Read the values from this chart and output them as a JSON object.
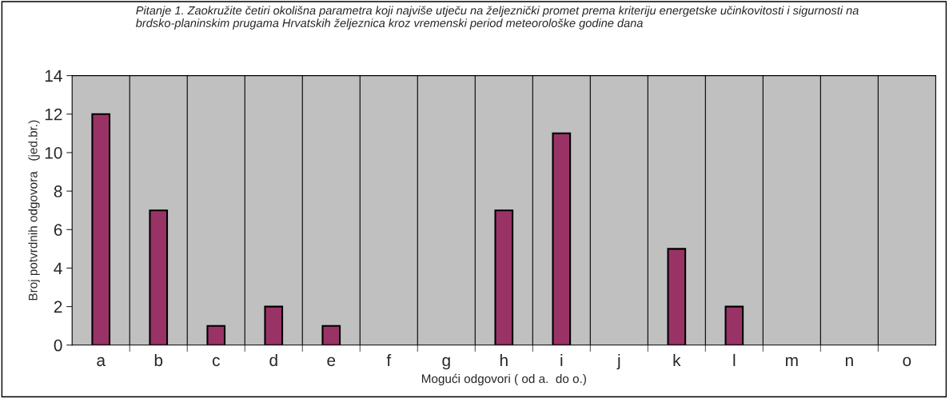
{
  "chart_data": {
    "type": "bar",
    "title": "Pitanje 1. Zaokružite četiri okolišna parametra koji najviše utječu na željeznički promet prema kriteriju energetske učinkovitosti i sigurnosti na brdsko-planinskim prugama Hrvatskih željeznica kroz vremenski period meteorološke godine dana",
    "xlabel": "Mogući odgovori ( od a.  do o.)",
    "ylabel": "Broj potvrdnih odgovora   (jed.br.)",
    "categories": [
      "a",
      "b",
      "c",
      "d",
      "e",
      "f",
      "g",
      "h",
      "i",
      "j",
      "k",
      "l",
      "m",
      "n",
      "o"
    ],
    "values": [
      12,
      7,
      1,
      2,
      1,
      0,
      0,
      7,
      11,
      0,
      5,
      2,
      0,
      0,
      0
    ],
    "color": "#993366",
    "ylim": [
      0,
      14
    ],
    "yticks": [
      0,
      2,
      4,
      6,
      8,
      10,
      12,
      14
    ],
    "grid": "x",
    "legend": false
  }
}
